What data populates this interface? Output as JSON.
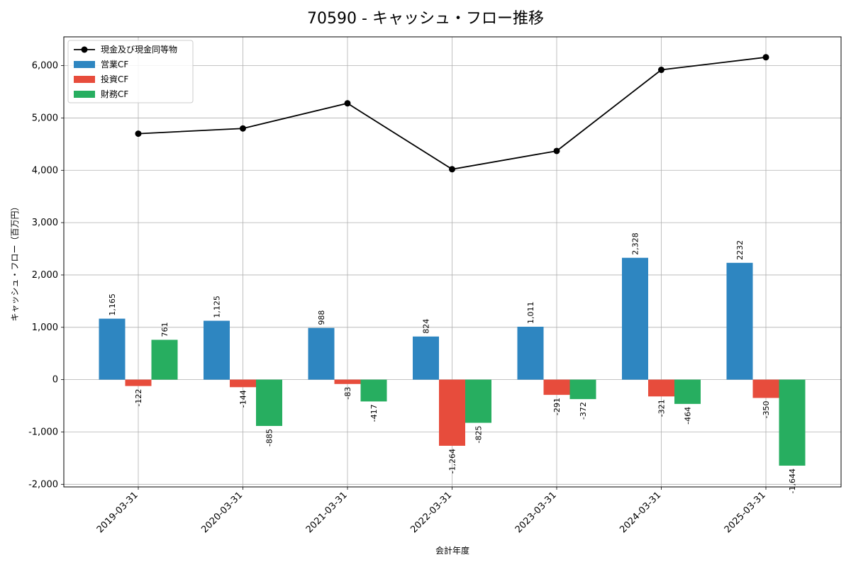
{
  "chart_data": {
    "type": "bar",
    "title": "70590 - キャッシュ・フロー推移",
    "xlabel": "会計年度",
    "ylabel": "キャッシュ・フロー（百万円）",
    "categories": [
      "2019-03-31",
      "2020-03-31",
      "2021-03-31",
      "2022-03-31",
      "2023-03-31",
      "2024-03-31",
      "2025-03-31"
    ],
    "ylim": [
      -2050,
      6550
    ],
    "yticks": [
      -2000,
      -1000,
      0,
      1000,
      2000,
      3000,
      4000,
      5000,
      6000
    ],
    "ytick_labels": [
      "-2,000",
      "-1,000",
      "0",
      "1,000",
      "2,000",
      "3,000",
      "4,000",
      "5,000",
      "6,000"
    ],
    "grid": true,
    "legend_position": "top-left",
    "series": [
      {
        "name": "営業CF",
        "kind": "bar",
        "color": "#2e86c1",
        "values": [
          1165,
          1125,
          988,
          824,
          1011,
          2328,
          2232
        ],
        "labels": [
          "1,165",
          "1,125",
          "988",
          "824",
          "1,011",
          "2,328",
          "2232"
        ]
      },
      {
        "name": "投資CF",
        "kind": "bar",
        "color": "#e74c3c",
        "values": [
          -122,
          -144,
          -83,
          -1264,
          -291,
          -321,
          -350
        ],
        "labels": [
          "-122",
          "-144",
          "-83",
          "-1,264",
          "-291",
          "-321",
          "-350"
        ]
      },
      {
        "name": "財務CF",
        "kind": "bar",
        "color": "#27ae60",
        "values": [
          761,
          -885,
          -417,
          -825,
          -372,
          -464,
          -1644
        ],
        "labels": [
          "761",
          "-885",
          "-417",
          "-825",
          "-372",
          "-464",
          "-1,644"
        ]
      },
      {
        "name": "現金及び現金同等物",
        "kind": "line",
        "color": "#000000",
        "values": [
          4700,
          4800,
          5280,
          4020,
          4370,
          5920,
          6160
        ]
      }
    ]
  }
}
